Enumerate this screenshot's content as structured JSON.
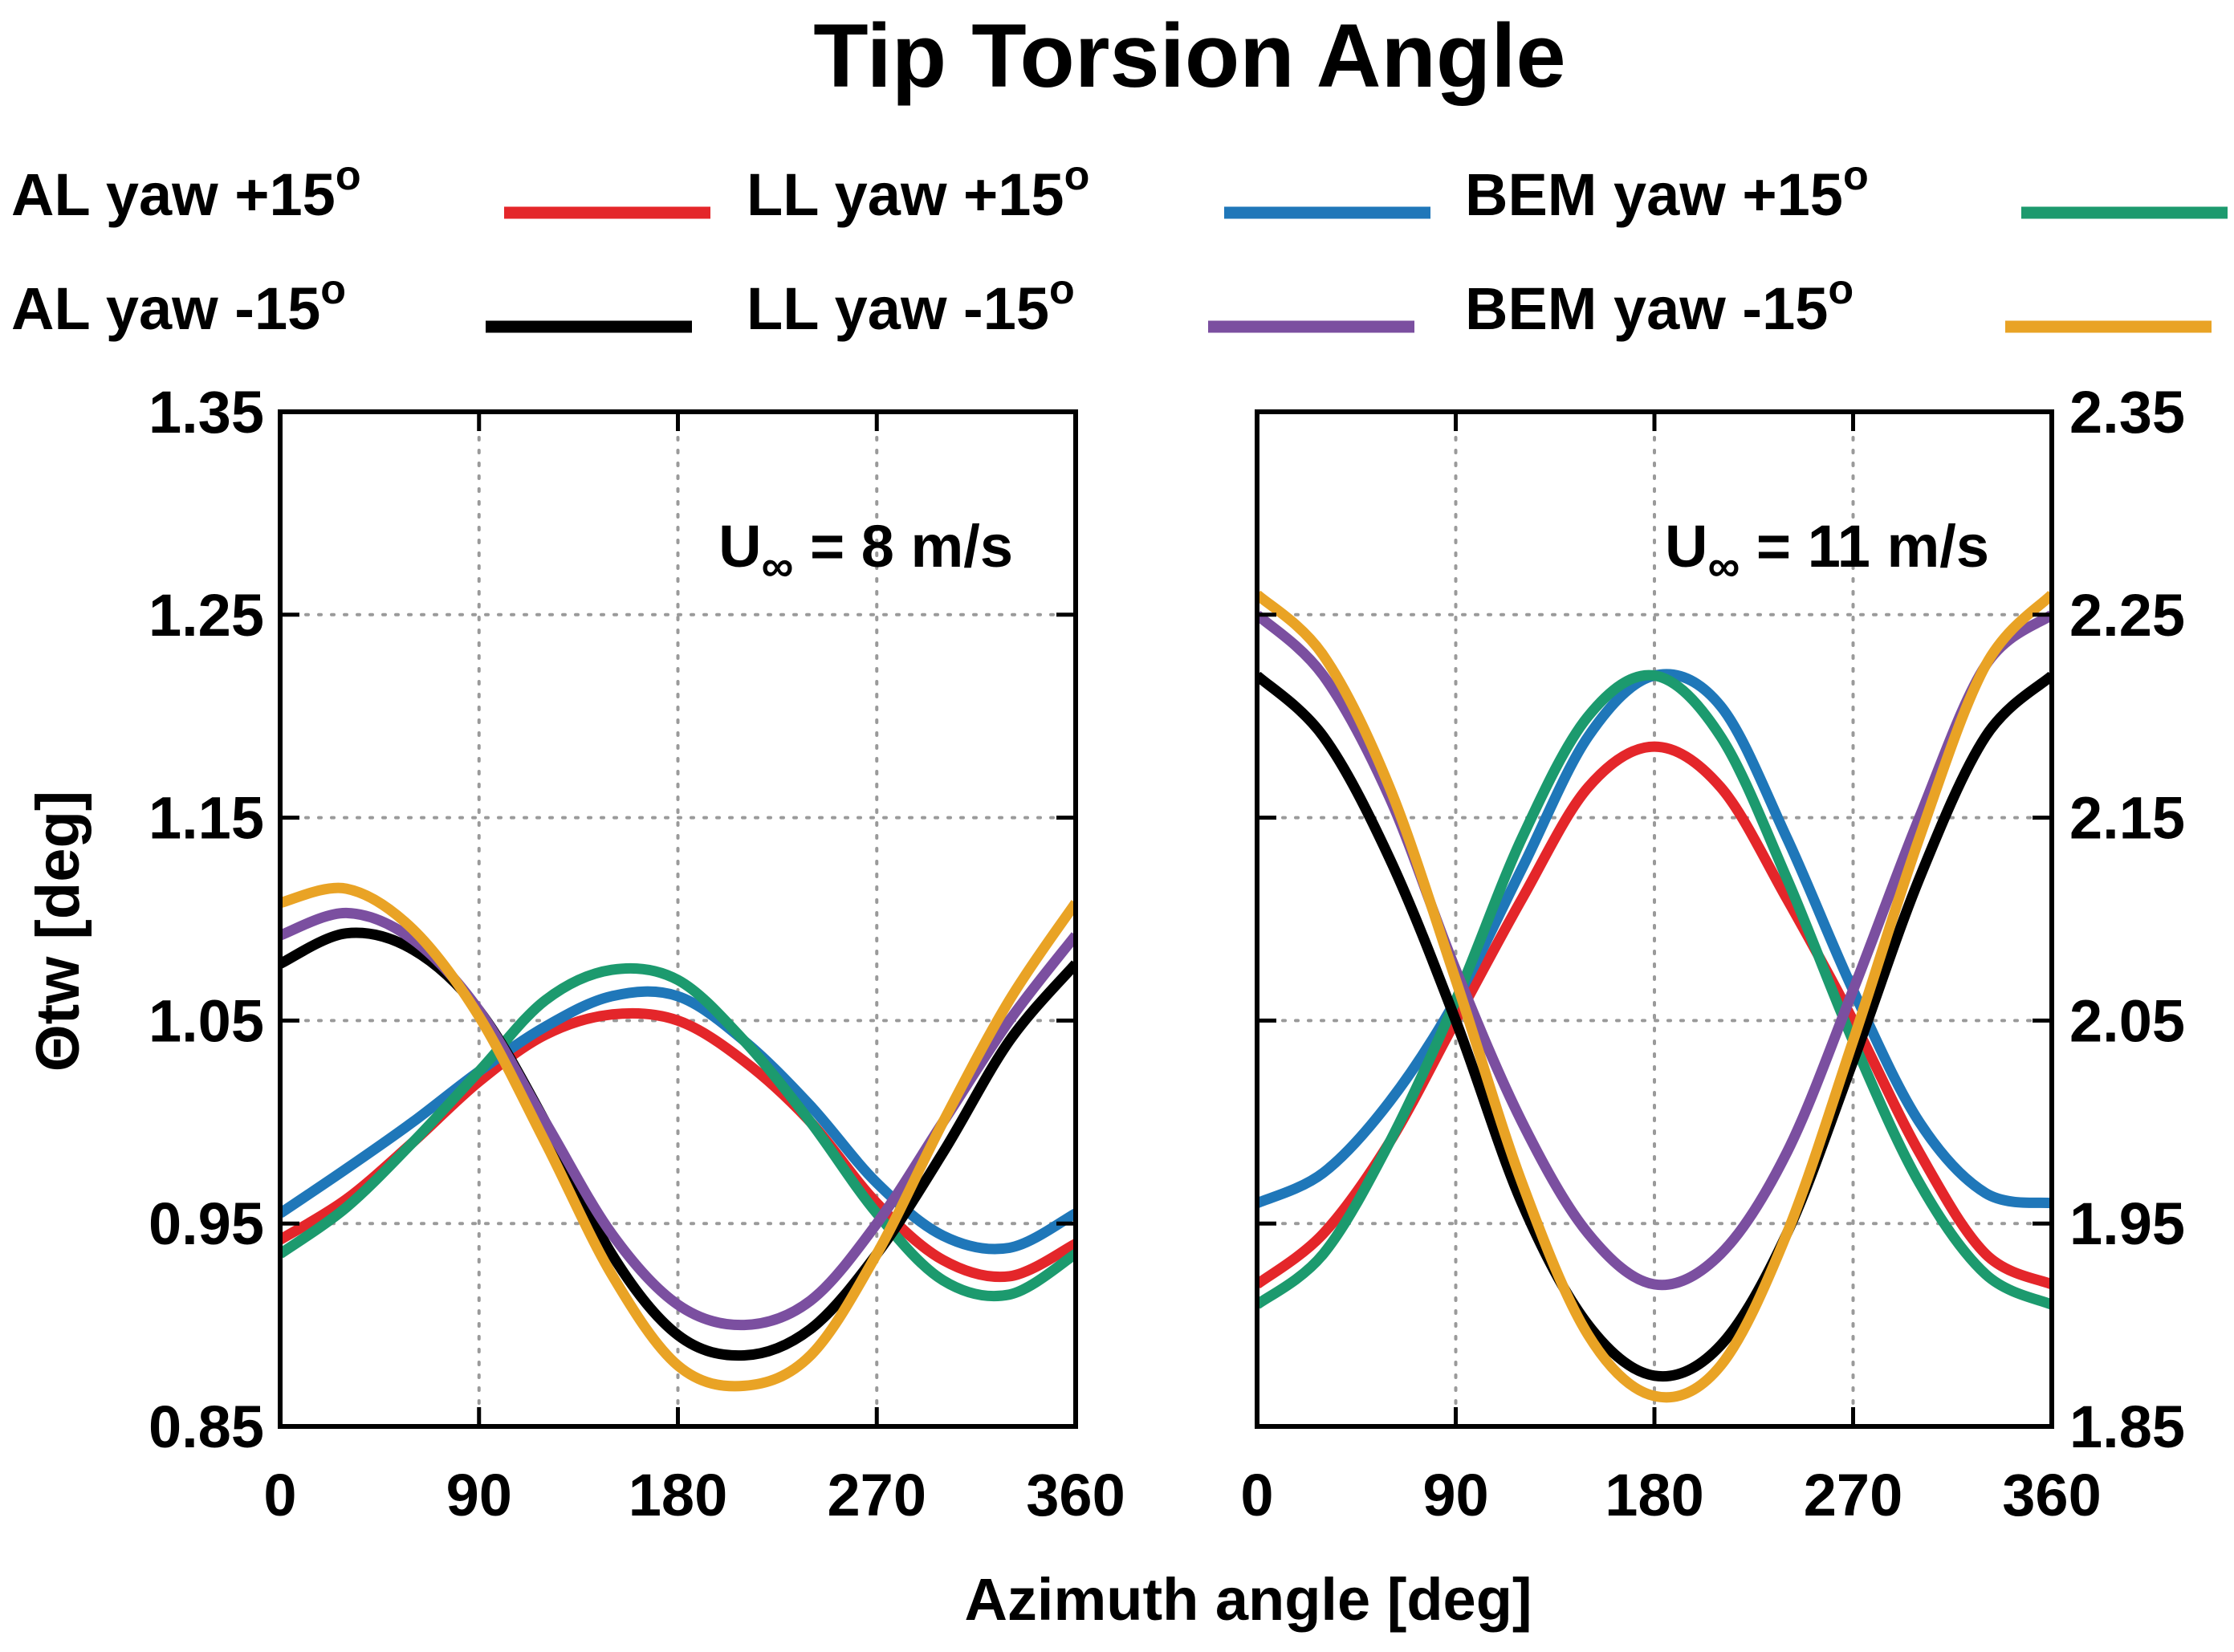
{
  "chart_data": {
    "type": "line",
    "title": "Tip Torsion Angle",
    "xlabel": "Azimuth angle [deg]",
    "ylabel": "Θtw [deg]",
    "legend_position": "top",
    "legend": [
      {
        "key": "al_p15",
        "label": "AL yaw +15",
        "sup": "o",
        "color": "#e4262a"
      },
      {
        "key": "ll_p15",
        "label": "LL yaw +15",
        "sup": "o",
        "color": "#1f77b9"
      },
      {
        "key": "bem_p15",
        "label": "BEM yaw +15",
        "sup": "o",
        "color": "#1c9a6e"
      },
      {
        "key": "al_m15",
        "label": "AL yaw -15",
        "sup": "o",
        "color": "#000000"
      },
      {
        "key": "ll_m15",
        "label": "LL yaw -15",
        "sup": "o",
        "color": "#7b4fa0"
      },
      {
        "key": "bem_m15",
        "label": "BEM yaw -15",
        "sup": "o",
        "color": "#e9a325"
      }
    ],
    "panels": [
      {
        "name": "left",
        "annotation_main": "U",
        "annotation_sub": "∞",
        "annotation_rest": " = 8 m/s",
        "y_axis_side": "left",
        "xlim": [
          0,
          360
        ],
        "ylim": [
          0.85,
          1.35
        ],
        "xticks": [
          0,
          90,
          180,
          270,
          360
        ],
        "xtick_labels": [
          "0",
          "90",
          "180",
          "270",
          "360"
        ],
        "yticks": [
          0.85,
          0.95,
          1.05,
          1.15,
          1.25,
          1.35
        ],
        "ytick_labels": [
          "0.85",
          "0.95",
          "1.05",
          "1.15",
          "1.25",
          "1.35"
        ],
        "grid": true,
        "series": [
          {
            "key": "al_p15",
            "name": "AL yaw +15",
            "x": [
              0,
              30,
              60,
              90,
              120,
              150,
              180,
              210,
              240,
              270,
              300,
              330,
              360
            ],
            "values": [
              0.942,
              0.962,
              0.99,
              1.02,
              1.043,
              1.053,
              1.05,
              1.03,
              1.0,
              0.96,
              0.932,
              0.924,
              0.94
            ]
          },
          {
            "key": "ll_p15",
            "name": "LL yaw +15",
            "x": [
              0,
              30,
              60,
              90,
              120,
              150,
              180,
              210,
              240,
              270,
              300,
              330,
              360
            ],
            "values": [
              0.955,
              0.977,
              1.0,
              1.025,
              1.047,
              1.062,
              1.062,
              1.04,
              1.008,
              0.97,
              0.944,
              0.938,
              0.955
            ]
          },
          {
            "key": "bem_p15",
            "name": "BEM yaw +15",
            "x": [
              0,
              30,
              60,
              90,
              120,
              150,
              180,
              210,
              240,
              270,
              300,
              330,
              360
            ],
            "values": [
              0.935,
              0.958,
              0.99,
              1.025,
              1.06,
              1.075,
              1.07,
              1.04,
              1.0,
              0.955,
              0.922,
              0.915,
              0.935
            ]
          },
          {
            "key": "al_m15",
            "name": "AL yaw -15",
            "x": [
              0,
              30,
              60,
              90,
              120,
              150,
              180,
              210,
              240,
              270,
              300,
              330,
              360
            ],
            "values": [
              1.078,
              1.093,
              1.085,
              1.055,
              1.0,
              0.935,
              0.895,
              0.885,
              0.898,
              0.935,
              0.985,
              1.04,
              1.078
            ]
          },
          {
            "key": "ll_m15",
            "name": "LL yaw -15",
            "x": [
              0,
              30,
              60,
              90,
              120,
              150,
              180,
              210,
              240,
              270,
              300,
              330,
              360
            ],
            "values": [
              1.092,
              1.103,
              1.09,
              1.055,
              1.0,
              0.945,
              0.91,
              0.9,
              0.912,
              0.95,
              1.0,
              1.05,
              1.092
            ]
          },
          {
            "key": "bem_m15",
            "name": "BEM yaw -15",
            "x": [
              0,
              30,
              60,
              90,
              120,
              150,
              180,
              210,
              240,
              270,
              300,
              330,
              360
            ],
            "values": [
              1.108,
              1.115,
              1.095,
              1.052,
              0.99,
              0.925,
              0.88,
              0.87,
              0.885,
              0.935,
              1.0,
              1.06,
              1.108
            ]
          }
        ]
      },
      {
        "name": "right",
        "annotation_main": "U",
        "annotation_sub": "∞",
        "annotation_rest": " = 11 m/s",
        "y_axis_side": "right",
        "xlim": [
          0,
          360
        ],
        "ylim": [
          1.85,
          2.35
        ],
        "xticks": [
          0,
          90,
          180,
          270,
          360
        ],
        "xtick_labels": [
          "0",
          "90",
          "180",
          "270",
          "360"
        ],
        "yticks": [
          1.85,
          1.95,
          2.05,
          2.15,
          2.25,
          2.35
        ],
        "ytick_labels": [
          "1.85",
          "1.95",
          "2.05",
          "2.15",
          "2.25",
          "2.35"
        ],
        "grid": true,
        "series": [
          {
            "key": "al_p15",
            "name": "AL yaw +15",
            "x": [
              0,
              30,
              60,
              90,
              120,
              150,
              180,
              210,
              240,
              270,
              300,
              330,
              360
            ],
            "values": [
              1.92,
              1.945,
              1.99,
              2.05,
              2.11,
              2.165,
              2.185,
              2.165,
              2.11,
              2.05,
              1.985,
              1.935,
              1.92
            ]
          },
          {
            "key": "ll_p15",
            "name": "LL yaw +15",
            "x": [
              0,
              30,
              60,
              90,
              120,
              150,
              180,
              210,
              240,
              270,
              300,
              330,
              360
            ],
            "values": [
              1.96,
              1.975,
              2.01,
              2.06,
              2.125,
              2.19,
              2.22,
              2.205,
              2.14,
              2.065,
              2.0,
              1.965,
              1.96
            ]
          },
          {
            "key": "bem_p15",
            "name": "BEM yaw +15",
            "x": [
              0,
              30,
              60,
              90,
              120,
              150,
              180,
              210,
              240,
              270,
              300,
              330,
              360
            ],
            "values": [
              1.91,
              1.935,
              1.99,
              2.06,
              2.14,
              2.2,
              2.22,
              2.19,
              2.12,
              2.04,
              1.97,
              1.925,
              1.91
            ]
          },
          {
            "key": "al_m15",
            "name": "AL yaw -15",
            "x": [
              0,
              30,
              60,
              90,
              120,
              150,
              180,
              210,
              240,
              270,
              300,
              330,
              360
            ],
            "values": [
              2.22,
              2.19,
              2.13,
              2.05,
              1.96,
              1.9,
              1.875,
              1.89,
              1.945,
              2.03,
              2.12,
              2.19,
              2.22
            ]
          },
          {
            "key": "ll_m15",
            "name": "LL yaw -15",
            "x": [
              0,
              30,
              60,
              90,
              120,
              150,
              180,
              210,
              240,
              270,
              300,
              330,
              360
            ],
            "values": [
              2.25,
              2.22,
              2.16,
              2.075,
              2.0,
              1.945,
              1.92,
              1.935,
              1.985,
              2.065,
              2.15,
              2.225,
              2.25
            ]
          },
          {
            "key": "bem_m15",
            "name": "BEM yaw -15",
            "x": [
              0,
              30,
              60,
              90,
              120,
              150,
              180,
              210,
              240,
              270,
              300,
              330,
              360
            ],
            "values": [
              2.26,
              2.23,
              2.165,
              2.07,
              1.97,
              1.895,
              1.865,
              1.88,
              1.945,
              2.04,
              2.14,
              2.225,
              2.26
            ]
          }
        ]
      }
    ]
  }
}
